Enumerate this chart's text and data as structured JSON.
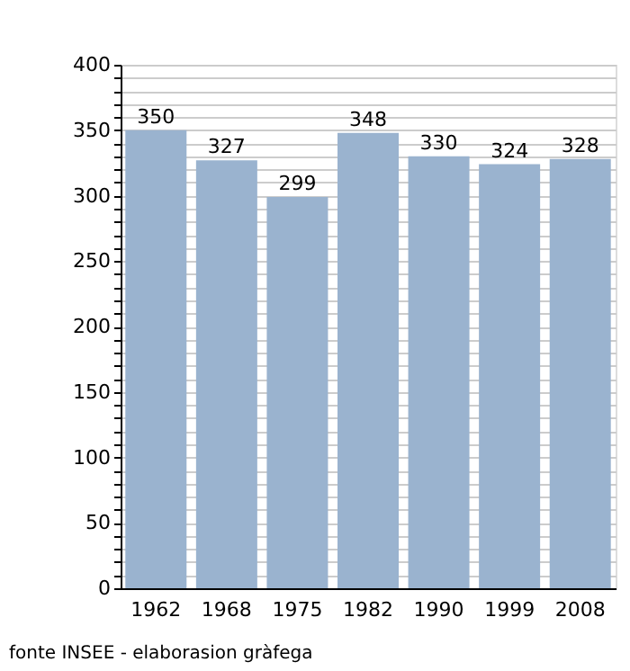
{
  "chart_data": {
    "type": "bar",
    "categories": [
      "1962",
      "1968",
      "1975",
      "1982",
      "1990",
      "1999",
      "2008"
    ],
    "values": [
      350,
      327,
      299,
      348,
      330,
      324,
      328
    ],
    "color": "#9ab3cf",
    "ylim": [
      0,
      400
    ],
    "yticks": [
      0,
      {
        "value": 10,
        "label": null
      },
      {
        "value": 20,
        "label": null
      },
      {
        "value": 30,
        "label": null
      },
      {
        "value": 40,
        "label": null
      },
      50,
      {
        "value": 60,
        "label": null
      },
      {
        "value": 70,
        "label": null
      },
      {
        "value": 80,
        "label": null
      },
      {
        "value": 90,
        "label": null
      },
      100,
      {
        "value": 110,
        "label": null
      },
      {
        "value": 120,
        "label": null
      },
      {
        "value": 130,
        "label": null
      },
      {
        "value": 140,
        "label": null
      },
      150,
      {
        "value": 160,
        "label": null
      },
      {
        "value": 170,
        "label": null
      },
      {
        "value": 180,
        "label": null
      },
      {
        "value": 190,
        "label": null
      },
      200,
      {
        "value": 210,
        "label": null
      },
      {
        "value": 220,
        "label": null
      },
      {
        "value": 230,
        "label": null
      },
      {
        "value": 240,
        "label": null
      },
      250,
      {
        "value": 260,
        "label": null
      },
      {
        "value": 270,
        "label": null
      },
      {
        "value": 280,
        "label": null
      },
      {
        "value": 290,
        "label": null
      },
      300,
      {
        "value": 310,
        "label": null
      },
      {
        "value": 320,
        "label": null
      },
      {
        "value": 330,
        "label": null
      },
      {
        "value": 340,
        "label": null
      },
      350,
      {
        "value": 360,
        "label": null
      },
      {
        "value": 370,
        "label": null
      },
      {
        "value": 380,
        "label": null
      },
      {
        "value": 390,
        "label": null
      },
      400
    ],
    "grid": "y",
    "data_labels": true,
    "annotations": [
      "fonte INSEE - elaborasion gràfega"
    ]
  }
}
